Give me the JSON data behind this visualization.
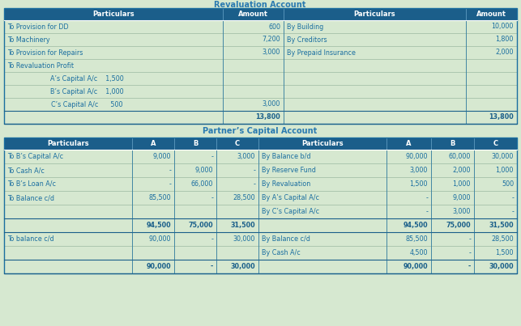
{
  "bg_color": "#d6e8d0",
  "header_bg": "#1b5e8a",
  "header_fg": "#ffffff",
  "cell_fg": "#1a6ea0",
  "bold_fg": "#1a5f8a",
  "title_fg": "#2a7ab0",
  "revaluation_title": "Revaluation Account",
  "partners_title": "Partner’s Capital Account",
  "rev_left_rows": [
    [
      "To Provision for DD",
      "",
      "600"
    ],
    [
      "To Machinery",
      "",
      "7,200"
    ],
    [
      "To Provision for Repairs",
      "",
      "3,000"
    ],
    [
      "To Revaluation Profit",
      "",
      ""
    ],
    [
      "",
      "A’s Capital A/c    1,500",
      ""
    ],
    [
      "",
      "B’s Capital A/c    1,000",
      ""
    ],
    [
      "",
      "C’s Capital A/c      500",
      "3,000"
    ],
    [
      "",
      "",
      "13,800"
    ]
  ],
  "rev_right_rows": [
    [
      "By Building",
      "10,000"
    ],
    [
      "By Creditors",
      "1,800"
    ],
    [
      "By Prepaid Insurance",
      "2,000"
    ],
    [
      "",
      ""
    ],
    [
      "",
      ""
    ],
    [
      "",
      ""
    ],
    [
      "",
      ""
    ],
    [
      "",
      "13,800"
    ]
  ],
  "cap_rows_left": [
    [
      "To B’s Capital A/c",
      "9,000",
      "-",
      "3,000"
    ],
    [
      "To Cash A/c",
      "-",
      "9,000",
      "-"
    ],
    [
      "To B’s Loan A/c",
      "-",
      "66,000",
      "-"
    ],
    [
      "To Balance c/d",
      "85,500",
      "-",
      "28,500"
    ],
    [
      "",
      "",
      "",
      ""
    ],
    [
      "",
      "94,500",
      "75,000",
      "31,500"
    ],
    [
      "To balance c/d",
      "90,000",
      "-",
      "30,000"
    ],
    [
      "",
      "",
      "",
      ""
    ],
    [
      "",
      "90,000",
      "-",
      "30,000"
    ]
  ],
  "cap_rows_right": [
    [
      "By Balance b/d",
      "90,000",
      "60,000",
      "30,000"
    ],
    [
      "By Reserve Fund",
      "3,000",
      "2,000",
      "1,000"
    ],
    [
      "By Revaluation",
      "1,500",
      "1,000",
      "500"
    ],
    [
      "By A’s Capital A/c",
      "-",
      "9,000",
      "-"
    ],
    [
      "By C’s Capital A/c",
      "-",
      "3,000",
      "-"
    ],
    [
      "",
      "94,500",
      "75,000",
      "31,500"
    ],
    [
      "By Balance c/d",
      "85,500",
      "-",
      "28,500"
    ],
    [
      "By Cash A/c",
      "4,500",
      "-",
      "1,500"
    ],
    [
      "",
      "90,000",
      "-",
      "30,000"
    ]
  ]
}
